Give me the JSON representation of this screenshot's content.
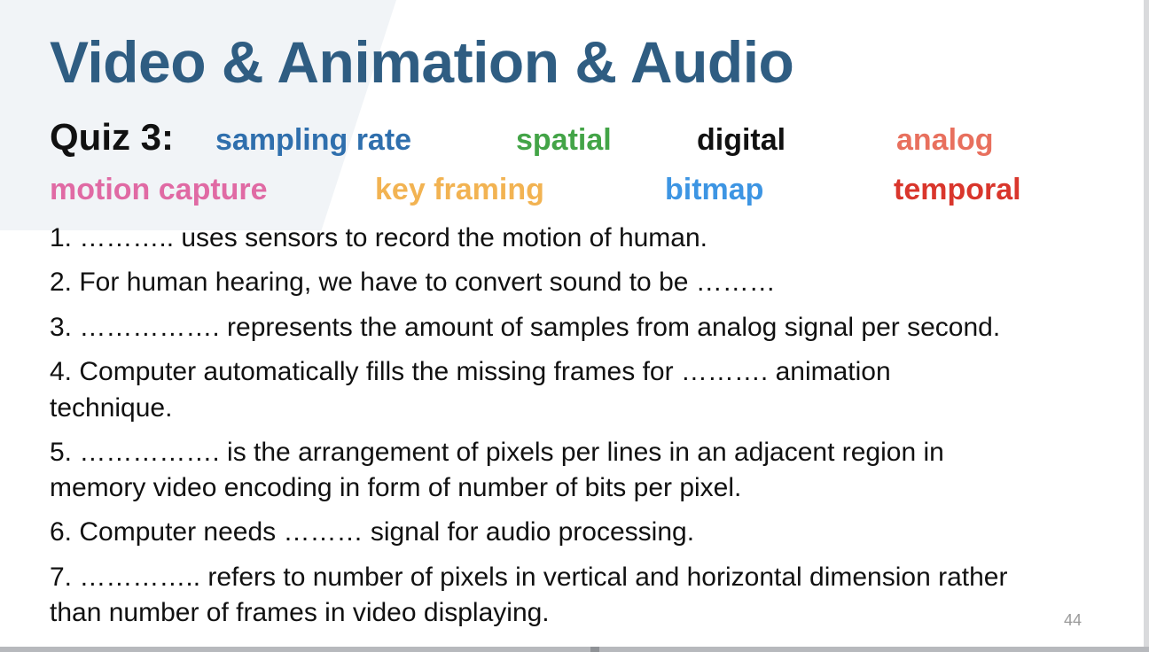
{
  "title": "Video & Animation & Audio",
  "quiz_label": "Quiz 3:",
  "terms": [
    {
      "text": "sampling rate",
      "color": "#2f6fad"
    },
    {
      "text": "spatial",
      "color": "#43a447"
    },
    {
      "text": "digital",
      "color": "#111111"
    },
    {
      "text": "analog",
      "color": "#e8705e"
    },
    {
      "text": "motion capture",
      "color": "#e06aa4"
    },
    {
      "text": "key framing",
      "color": "#f2b352"
    },
    {
      "text": "bitmap",
      "color": "#3d95e3"
    },
    {
      "text": "temporal",
      "color": "#d9362c"
    }
  ],
  "questions": [
    "1. ……….. uses sensors to record the motion of human.",
    "2. For human hearing, we have to convert sound to be ………",
    "3. ……………. represents the amount of samples from analog signal per second.",
    "4. Computer automatically fills the missing frames for ………. animation",
    "technique.",
    "5. ……………. is the arrangement of pixels per lines in an adjacent region in",
    "memory video encoding in form of number of bits per pixel.",
    "6. Computer needs ……… signal for audio processing.",
    "7. ………….. refers to number of pixels in vertical and horizontal dimension rather",
    "than number of frames in video displaying."
  ],
  "page_number": "44"
}
